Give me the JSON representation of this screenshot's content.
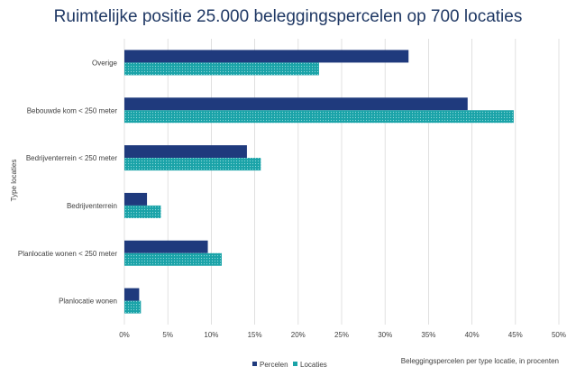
{
  "chart_data": {
    "type": "bar",
    "orientation": "horizontal",
    "title": "Ruimtelijke positie 25.000 beleggingspercelen op 700 locaties",
    "ylabel": "Type locaties",
    "xlabel": "Beleggingspercelen per type locatie, in procenten",
    "categories": [
      "Overige",
      "Bebouwde kom < 250 meter",
      "Bedrijventerrein < 250 meter",
      "Bedrijventerrein",
      "Planlocatie wonen < 250 meter",
      "Planlocatie wonen"
    ],
    "series": [
      {
        "name": "Percelen",
        "color": "#1f3a7d",
        "values": [
          32.7,
          39.5,
          14.1,
          2.6,
          9.6,
          1.7
        ]
      },
      {
        "name": "Locaties",
        "color": "#1aa3a8",
        "values": [
          22.4,
          44.8,
          15.7,
          4.2,
          11.2,
          1.9
        ]
      }
    ],
    "xlim": [
      0,
      50
    ],
    "ticks": [
      "0%",
      "5%",
      "10%",
      "15%",
      "20%",
      "25%",
      "30%",
      "35%",
      "40%",
      "45%",
      "50%"
    ],
    "tick_values": [
      0,
      5,
      10,
      15,
      20,
      25,
      30,
      35,
      40,
      45,
      50
    ],
    "grid": true,
    "legend_position": "bottom"
  }
}
